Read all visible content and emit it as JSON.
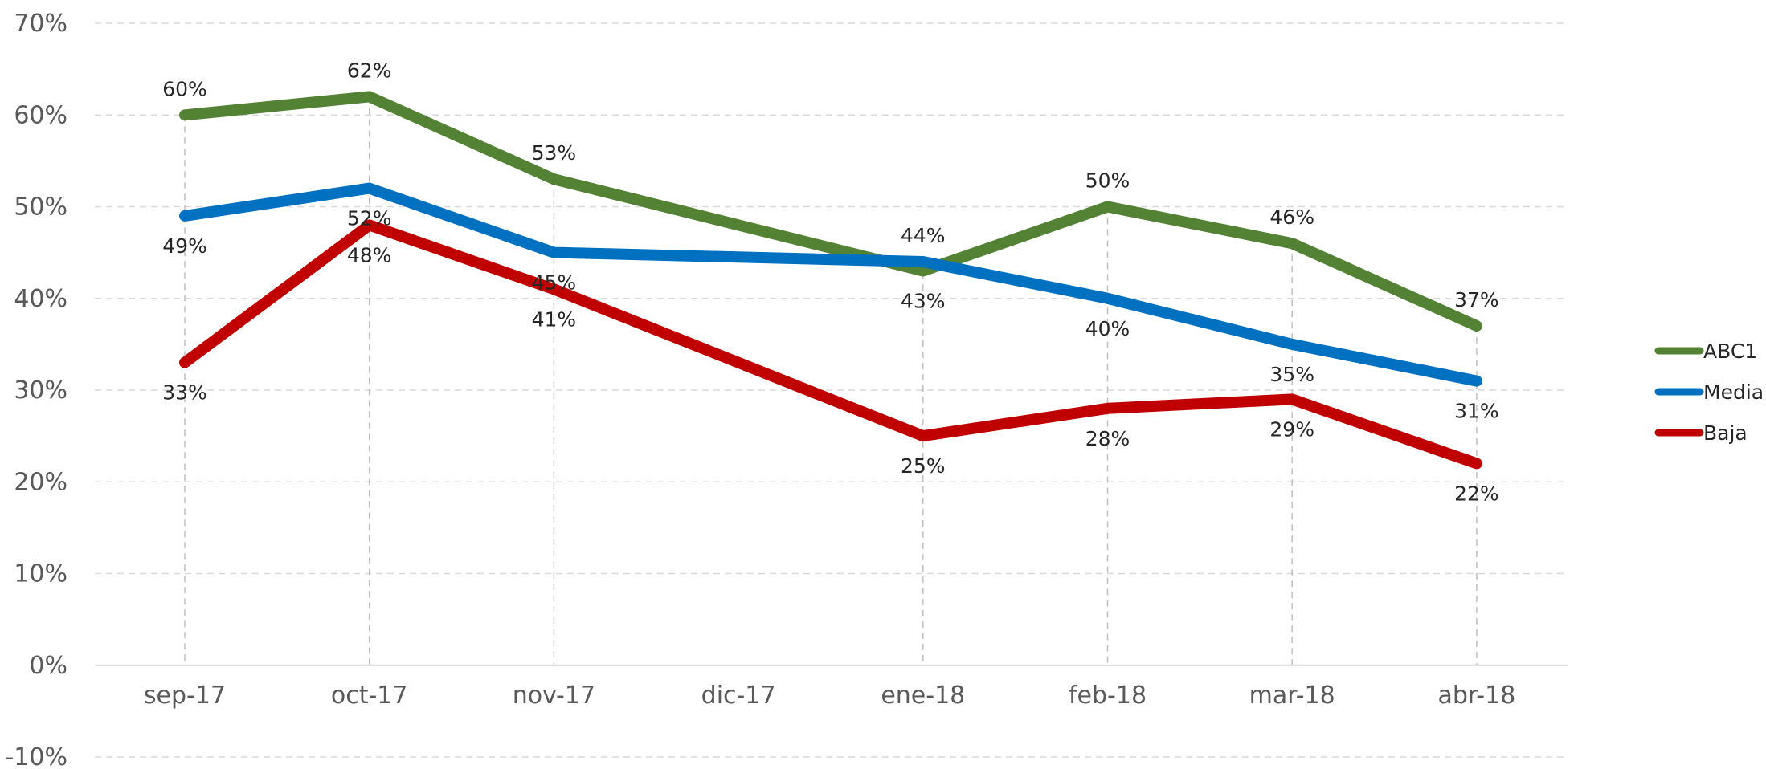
{
  "chart_data": {
    "type": "line",
    "title": "",
    "xlabel": "",
    "ylabel": "",
    "categories": [
      "sep-17",
      "oct-17",
      "nov-17",
      "dic-17",
      "ene-18",
      "feb-18",
      "mar-18",
      "abr-18"
    ],
    "ylim": [
      -0.1,
      0.7
    ],
    "yticks": [
      "70%",
      "60%",
      "50%",
      "40%",
      "30%",
      "20%",
      "10%",
      "0%",
      "-10%"
    ],
    "ytick_values": [
      0.7,
      0.6,
      0.5,
      0.4,
      0.3,
      0.2,
      0.1,
      0.0,
      -0.1
    ],
    "grid": "horizontal and vertical dashed",
    "legend_position": "right",
    "series": [
      {
        "name": "ABC1",
        "color": "#548235",
        "values": [
          0.6,
          0.62,
          0.53,
          null,
          0.43,
          0.5,
          0.46,
          0.37
        ],
        "labels": [
          "60%",
          "62%",
          "53%",
          null,
          "43%",
          "50%",
          "46%",
          "37%"
        ]
      },
      {
        "name": "Media",
        "color": "#0070C0",
        "values": [
          0.49,
          0.52,
          0.45,
          null,
          0.44,
          0.4,
          0.35,
          0.31
        ],
        "labels": [
          "49%",
          "52%",
          "45%",
          null,
          "44%",
          "40%",
          "35%",
          "31%"
        ]
      },
      {
        "name": "Baja",
        "color": "#C00000",
        "values": [
          0.33,
          0.48,
          0.41,
          null,
          0.25,
          0.28,
          0.29,
          0.22
        ],
        "labels": [
          "33%",
          "48%",
          "41%",
          null,
          "25%",
          "28%",
          "29%",
          "22%"
        ]
      }
    ]
  }
}
